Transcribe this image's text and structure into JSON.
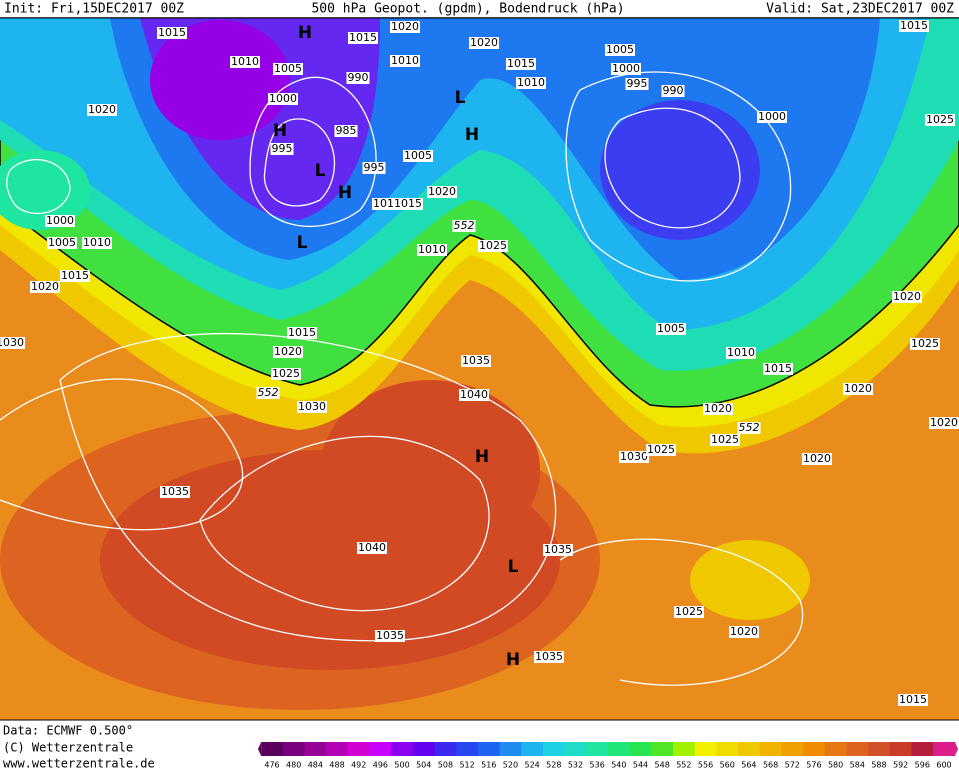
{
  "header": {
    "init": "Init: Fri,15DEC2017 00Z",
    "title": "500 hPa Geopot. (gpdm), Bodendruck (hPa)",
    "valid": "Valid: Sat,23DEC2017 00Z"
  },
  "footer": [
    "Data: ECMWF  0.500°",
    "(C) Wetterzentrale",
    "www.wetterzentrale.de"
  ],
  "colorbar": {
    "labels": [
      476,
      480,
      484,
      488,
      492,
      496,
      500,
      504,
      508,
      512,
      516,
      520,
      524,
      528,
      532,
      536,
      540,
      544,
      548,
      552,
      556,
      560,
      564,
      568,
      572,
      576,
      580,
      584,
      588,
      592,
      596,
      600
    ],
    "colors": [
      "#5a005a",
      "#78007d",
      "#960096",
      "#b400b4",
      "#d200d2",
      "#c800ff",
      "#8c00f0",
      "#6400f0",
      "#3c28f0",
      "#2846f0",
      "#1e64f0",
      "#1e8cf0",
      "#1eb4f0",
      "#1ed2e6",
      "#1edcc8",
      "#1ee6a0",
      "#1ee678",
      "#28e650",
      "#50e628",
      "#a0f000",
      "#f0f000",
      "#f0dc00",
      "#f0c800",
      "#f0b400",
      "#f0a000",
      "#f08c00",
      "#e67814",
      "#dc641e",
      "#d25028",
      "#c83c28",
      "#b41e3c",
      "#dc1e8c"
    ]
  },
  "map": {
    "isobars": [
      1015,
      1010,
      1005,
      1000,
      1015,
      1020,
      1010,
      990,
      985,
      995,
      995,
      1005,
      1020,
      1010,
      1015,
      1010,
      1025,
      1020,
      1015,
      1010,
      1005,
      1000,
      995,
      990,
      1000,
      1015,
      1025,
      1020,
      1000,
      1005,
      1010,
      1015,
      1020,
      1030,
      1015,
      1020,
      1025,
      1030,
      1035,
      1040,
      1035,
      1040,
      1035,
      1035,
      1035,
      1005,
      1010,
      1015,
      1020,
      1025,
      1030,
      1025,
      1020,
      1020,
      1025,
      1020,
      1020,
      1025,
      1020,
      1015
    ],
    "contour_labels": [
      552,
      552,
      552
    ],
    "pressure_centers": [
      "H",
      "L",
      "H",
      "H",
      "H",
      "L",
      "L",
      "H",
      "L",
      "H"
    ]
  }
}
